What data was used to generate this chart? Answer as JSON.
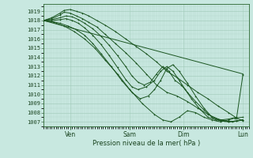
{
  "title": "Pression niveau de la mer( hPa )",
  "bg_color": "#c8e8e0",
  "grid_color": "#a0c8b8",
  "line_color": "#1a5520",
  "ylim": [
    1006.5,
    1019.8
  ],
  "yticks": [
    1007,
    1008,
    1009,
    1010,
    1011,
    1012,
    1013,
    1014,
    1015,
    1016,
    1017,
    1018,
    1019
  ],
  "xlim": [
    0.0,
    1.0
  ],
  "x_tick_positions": [
    0.13,
    0.42,
    0.68,
    0.97
  ],
  "x_labels": [
    "Ven",
    "Sam",
    "Dim",
    "Lun"
  ],
  "lines": [
    {
      "x": [
        0.0,
        0.97
      ],
      "y": [
        1018.0,
        1012.2
      ]
    },
    {
      "x": [
        0.0,
        0.04,
        0.08,
        0.1,
        0.13,
        0.16,
        0.19,
        0.22,
        0.26,
        0.3,
        0.35,
        0.4,
        0.45,
        0.5,
        0.55,
        0.6,
        0.65,
        0.7,
        0.75,
        0.8,
        0.85,
        0.9,
        0.94,
        0.97
      ],
      "y": [
        1018.0,
        1018.3,
        1018.8,
        1019.1,
        1019.2,
        1019.0,
        1018.8,
        1018.5,
        1018.0,
        1017.5,
        1016.8,
        1016.0,
        1015.2,
        1014.4,
        1013.5,
        1012.5,
        1011.8,
        1011.0,
        1010.2,
        1009.5,
        1008.7,
        1008.0,
        1007.4,
        1007.1
      ]
    },
    {
      "x": [
        0.0,
        0.04,
        0.08,
        0.1,
        0.13,
        0.16,
        0.19,
        0.22,
        0.26,
        0.3,
        0.35,
        0.4,
        0.45,
        0.5,
        0.55,
        0.6,
        0.65,
        0.7,
        0.75,
        0.8,
        0.85,
        0.9,
        0.94,
        0.97
      ],
      "y": [
        1018.0,
        1018.2,
        1018.6,
        1018.9,
        1018.8,
        1018.5,
        1018.2,
        1017.8,
        1017.3,
        1016.5,
        1015.5,
        1014.5,
        1013.4,
        1012.2,
        1011.0,
        1010.2,
        1009.8,
        1009.2,
        1008.5,
        1007.8,
        1007.3,
        1007.0,
        1007.1,
        1007.2
      ]
    },
    {
      "x": [
        0.0,
        0.04,
        0.08,
        0.11,
        0.14,
        0.17,
        0.2,
        0.24,
        0.28,
        0.32,
        0.36,
        0.4,
        0.43,
        0.46,
        0.49,
        0.52,
        0.55,
        0.58,
        0.61,
        0.64,
        0.67,
        0.7,
        0.74,
        0.78,
        0.82,
        0.86,
        0.9,
        0.94,
        0.97
      ],
      "y": [
        1018.0,
        1018.1,
        1018.3,
        1018.5,
        1018.4,
        1018.1,
        1017.7,
        1017.1,
        1016.3,
        1015.3,
        1014.2,
        1013.0,
        1012.0,
        1011.3,
        1011.0,
        1011.3,
        1012.2,
        1013.0,
        1012.5,
        1011.5,
        1011.0,
        1010.2,
        1009.2,
        1008.3,
        1007.5,
        1007.2,
        1007.3,
        1007.5,
        1012.1
      ]
    },
    {
      "x": [
        0.0,
        0.04,
        0.08,
        0.11,
        0.14,
        0.17,
        0.2,
        0.24,
        0.28,
        0.32,
        0.36,
        0.4,
        0.43,
        0.46,
        0.5,
        0.54,
        0.57,
        0.6,
        0.63,
        0.66,
        0.69,
        0.72,
        0.76,
        0.8,
        0.84,
        0.88,
        0.92,
        0.97
      ],
      "y": [
        1018.0,
        1018.0,
        1018.1,
        1018.2,
        1018.0,
        1017.7,
        1017.2,
        1016.4,
        1015.4,
        1014.2,
        1012.9,
        1011.6,
        1010.8,
        1010.5,
        1010.8,
        1011.5,
        1012.5,
        1013.0,
        1012.5,
        1011.5,
        1010.5,
        1009.5,
        1008.4,
        1007.5,
        1007.2,
        1007.1,
        1007.0,
        1007.2
      ]
    },
    {
      "x": [
        0.0,
        0.04,
        0.08,
        0.12,
        0.16,
        0.2,
        0.24,
        0.28,
        0.33,
        0.38,
        0.43,
        0.47,
        0.51,
        0.54,
        0.57,
        0.6,
        0.63,
        0.66,
        0.7,
        0.74,
        0.78,
        0.82,
        0.86,
        0.9,
        0.94,
        0.97
      ],
      "y": [
        1018.0,
        1017.9,
        1017.7,
        1017.4,
        1017.0,
        1016.4,
        1015.5,
        1014.4,
        1013.0,
        1011.5,
        1010.2,
        1009.5,
        1009.8,
        1010.5,
        1011.5,
        1012.8,
        1013.2,
        1012.5,
        1011.2,
        1009.8,
        1008.5,
        1007.5,
        1007.1,
        1007.0,
        1007.1,
        1007.2
      ]
    },
    {
      "x": [
        0.0,
        0.05,
        0.1,
        0.15,
        0.2,
        0.25,
        0.3,
        0.36,
        0.42,
        0.48,
        0.54,
        0.58,
        0.62,
        0.66,
        0.7,
        0.74,
        0.78,
        0.82,
        0.86,
        0.9,
        0.93,
        0.97
      ],
      "y": [
        1018.0,
        1017.8,
        1017.4,
        1016.8,
        1016.0,
        1015.0,
        1013.7,
        1012.2,
        1010.5,
        1009.0,
        1007.8,
        1007.2,
        1007.0,
        1007.5,
        1008.2,
        1008.0,
        1007.5,
        1007.2,
        1007.0,
        1007.2,
        1007.4,
        1007.5
      ]
    }
  ]
}
